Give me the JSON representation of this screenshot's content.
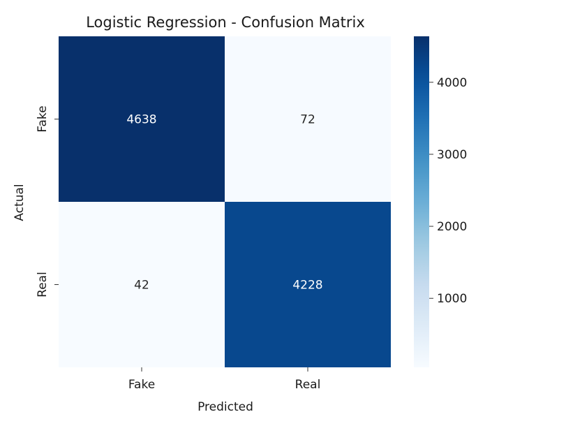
{
  "chart_data": {
    "type": "heatmap",
    "title": "Logistic Regression - Confusion Matrix",
    "xlabel": "Predicted",
    "ylabel": "Actual",
    "x_categories": [
      "Fake",
      "Real"
    ],
    "y_categories": [
      "Fake",
      "Real"
    ],
    "values": [
      [
        4638,
        72
      ],
      [
        42,
        4228
      ]
    ],
    "colormap": "Blues",
    "colorscale": {
      "min": 42,
      "max": 4638
    },
    "colorbar_ticks": [
      1000,
      2000,
      3000,
      4000
    ],
    "colorbar_tick_labels": [
      "1000",
      "2000",
      "3000",
      "4000"
    ],
    "colors": {
      "low": "#f7fbff",
      "high": "#08306b"
    }
  }
}
